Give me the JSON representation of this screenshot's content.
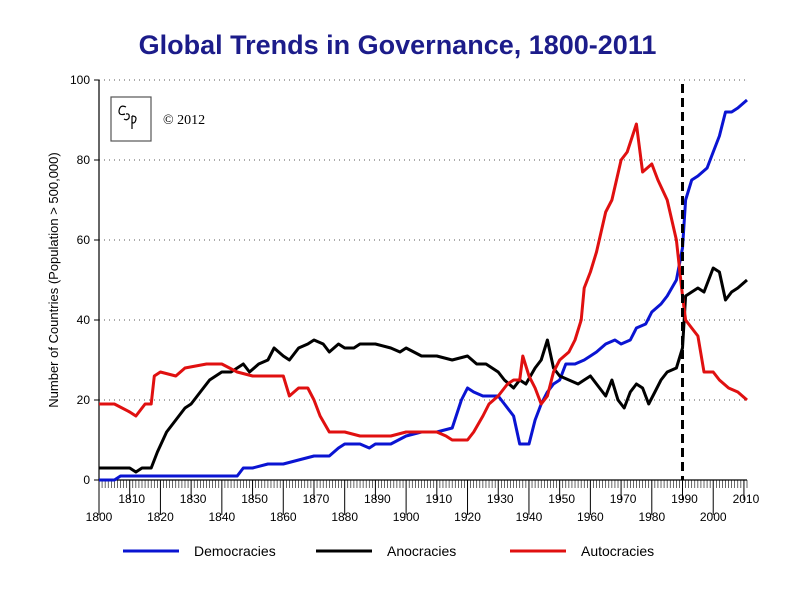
{
  "chart_data": {
    "type": "line",
    "title": "Global Trends in Governance, 1800-2011",
    "ylabel": "Number of Countries (Population > 500,000)",
    "xlabel": "",
    "xlim": [
      1800,
      2011
    ],
    "ylim": [
      0,
      100
    ],
    "yticks": [
      0,
      20,
      40,
      60,
      80,
      100
    ],
    "xticks_upper": [
      1810,
      1830,
      1850,
      1870,
      1890,
      1910,
      1930,
      1950,
      1970,
      1990,
      2010
    ],
    "xticks_lower": [
      1800,
      1820,
      1840,
      1860,
      1880,
      1900,
      1920,
      1940,
      1960,
      1980,
      2000
    ],
    "grid": "horizontal dotted",
    "legend_placement": "bottom",
    "annotation": {
      "logo_text": "CSP",
      "copyright": "© 2012"
    },
    "marker_line_year": 1990,
    "series": [
      {
        "name": "Democracies",
        "color": "#0a14d2",
        "points": [
          [
            1800,
            0
          ],
          [
            1805,
            0
          ],
          [
            1807,
            1
          ],
          [
            1845,
            1
          ],
          [
            1847,
            3
          ],
          [
            1850,
            3
          ],
          [
            1855,
            4
          ],
          [
            1860,
            4
          ],
          [
            1865,
            5
          ],
          [
            1870,
            6
          ],
          [
            1875,
            6
          ],
          [
            1878,
            8
          ],
          [
            1880,
            9
          ],
          [
            1885,
            9
          ],
          [
            1888,
            8
          ],
          [
            1890,
            9
          ],
          [
            1895,
            9
          ],
          [
            1900,
            11
          ],
          [
            1905,
            12
          ],
          [
            1910,
            12
          ],
          [
            1915,
            13
          ],
          [
            1918,
            20
          ],
          [
            1920,
            23
          ],
          [
            1922,
            22
          ],
          [
            1925,
            21
          ],
          [
            1930,
            21
          ],
          [
            1932,
            19
          ],
          [
            1935,
            16
          ],
          [
            1937,
            9
          ],
          [
            1940,
            9
          ],
          [
            1942,
            15
          ],
          [
            1944,
            19
          ],
          [
            1946,
            22
          ],
          [
            1948,
            24
          ],
          [
            1950,
            25
          ],
          [
            1952,
            29
          ],
          [
            1955,
            29
          ],
          [
            1958,
            30
          ],
          [
            1960,
            31
          ],
          [
            1962,
            32
          ],
          [
            1965,
            34
          ],
          [
            1968,
            35
          ],
          [
            1970,
            34
          ],
          [
            1973,
            35
          ],
          [
            1975,
            38
          ],
          [
            1978,
            39
          ],
          [
            1980,
            42
          ],
          [
            1983,
            44
          ],
          [
            1985,
            46
          ],
          [
            1988,
            50
          ],
          [
            1990,
            58
          ],
          [
            1991,
            70
          ],
          [
            1993,
            75
          ],
          [
            1995,
            76
          ],
          [
            1998,
            78
          ],
          [
            2000,
            82
          ],
          [
            2002,
            86
          ],
          [
            2004,
            92
          ],
          [
            2006,
            92
          ],
          [
            2008,
            93
          ],
          [
            2011,
            95
          ]
        ]
      },
      {
        "name": "Anocracies",
        "color": "#000000",
        "points": [
          [
            1800,
            3
          ],
          [
            1810,
            3
          ],
          [
            1812,
            2
          ],
          [
            1814,
            3
          ],
          [
            1817,
            3
          ],
          [
            1819,
            7
          ],
          [
            1822,
            12
          ],
          [
            1825,
            15
          ],
          [
            1828,
            18
          ],
          [
            1830,
            19
          ],
          [
            1833,
            22
          ],
          [
            1836,
            25
          ],
          [
            1840,
            27
          ],
          [
            1843,
            27
          ],
          [
            1845,
            28
          ],
          [
            1847,
            29
          ],
          [
            1849,
            27
          ],
          [
            1852,
            29
          ],
          [
            1855,
            30
          ],
          [
            1857,
            33
          ],
          [
            1860,
            31
          ],
          [
            1862,
            30
          ],
          [
            1865,
            33
          ],
          [
            1868,
            34
          ],
          [
            1870,
            35
          ],
          [
            1873,
            34
          ],
          [
            1875,
            32
          ],
          [
            1878,
            34
          ],
          [
            1880,
            33
          ],
          [
            1883,
            33
          ],
          [
            1885,
            34
          ],
          [
            1890,
            34
          ],
          [
            1895,
            33
          ],
          [
            1898,
            32
          ],
          [
            1900,
            33
          ],
          [
            1905,
            31
          ],
          [
            1910,
            31
          ],
          [
            1915,
            30
          ],
          [
            1920,
            31
          ],
          [
            1923,
            29
          ],
          [
            1926,
            29
          ],
          [
            1930,
            27
          ],
          [
            1932,
            25
          ],
          [
            1935,
            23
          ],
          [
            1937,
            25
          ],
          [
            1939,
            24
          ],
          [
            1942,
            28
          ],
          [
            1944,
            30
          ],
          [
            1946,
            35
          ],
          [
            1948,
            28
          ],
          [
            1950,
            26
          ],
          [
            1953,
            25
          ],
          [
            1956,
            24
          ],
          [
            1958,
            25
          ],
          [
            1960,
            26
          ],
          [
            1962,
            24
          ],
          [
            1965,
            21
          ],
          [
            1967,
            25
          ],
          [
            1969,
            20
          ],
          [
            1971,
            18
          ],
          [
            1973,
            22
          ],
          [
            1975,
            24
          ],
          [
            1977,
            23
          ],
          [
            1979,
            19
          ],
          [
            1981,
            22
          ],
          [
            1983,
            25
          ],
          [
            1985,
            27
          ],
          [
            1988,
            28
          ],
          [
            1990,
            33
          ],
          [
            1991,
            46
          ],
          [
            1993,
            47
          ],
          [
            1995,
            48
          ],
          [
            1997,
            47
          ],
          [
            2000,
            53
          ],
          [
            2002,
            52
          ],
          [
            2004,
            45
          ],
          [
            2006,
            47
          ],
          [
            2008,
            48
          ],
          [
            2011,
            50
          ]
        ]
      },
      {
        "name": "Autocracies",
        "color": "#e01010",
        "points": [
          [
            1800,
            19
          ],
          [
            1805,
            19
          ],
          [
            1810,
            17
          ],
          [
            1812,
            16
          ],
          [
            1815,
            19
          ],
          [
            1817,
            19
          ],
          [
            1818,
            26
          ],
          [
            1820,
            27
          ],
          [
            1825,
            26
          ],
          [
            1828,
            28
          ],
          [
            1835,
            29
          ],
          [
            1840,
            29
          ],
          [
            1845,
            27
          ],
          [
            1850,
            26
          ],
          [
            1855,
            26
          ],
          [
            1860,
            26
          ],
          [
            1862,
            21
          ],
          [
            1865,
            23
          ],
          [
            1868,
            23
          ],
          [
            1870,
            20
          ],
          [
            1872,
            16
          ],
          [
            1875,
            12
          ],
          [
            1880,
            12
          ],
          [
            1885,
            11
          ],
          [
            1890,
            11
          ],
          [
            1895,
            11
          ],
          [
            1900,
            12
          ],
          [
            1905,
            12
          ],
          [
            1910,
            12
          ],
          [
            1913,
            11
          ],
          [
            1915,
            10
          ],
          [
            1920,
            10
          ],
          [
            1922,
            12
          ],
          [
            1925,
            16
          ],
          [
            1927,
            19
          ],
          [
            1930,
            21
          ],
          [
            1933,
            24
          ],
          [
            1935,
            25
          ],
          [
            1937,
            25
          ],
          [
            1938,
            31
          ],
          [
            1940,
            26
          ],
          [
            1942,
            23
          ],
          [
            1944,
            19
          ],
          [
            1946,
            21
          ],
          [
            1948,
            27
          ],
          [
            1950,
            30
          ],
          [
            1953,
            32
          ],
          [
            1955,
            35
          ],
          [
            1957,
            40
          ],
          [
            1958,
            48
          ],
          [
            1960,
            52
          ],
          [
            1962,
            57
          ],
          [
            1965,
            67
          ],
          [
            1967,
            70
          ],
          [
            1970,
            80
          ],
          [
            1972,
            82
          ],
          [
            1975,
            89
          ],
          [
            1977,
            77
          ],
          [
            1980,
            79
          ],
          [
            1982,
            75
          ],
          [
            1985,
            70
          ],
          [
            1988,
            60
          ],
          [
            1990,
            46
          ],
          [
            1991,
            40
          ],
          [
            1993,
            38
          ],
          [
            1995,
            36
          ],
          [
            1997,
            27
          ],
          [
            2000,
            27
          ],
          [
            2002,
            25
          ],
          [
            2005,
            23
          ],
          [
            2008,
            22
          ],
          [
            2011,
            20
          ]
        ]
      }
    ]
  }
}
